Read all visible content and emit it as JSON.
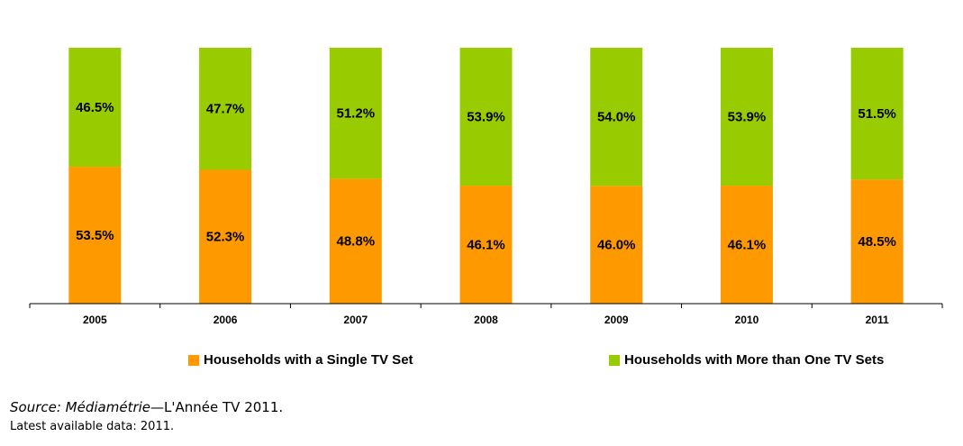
{
  "chart_data": {
    "type": "bar",
    "stacked": true,
    "categories": [
      "2005",
      "2006",
      "2007",
      "2008",
      "2009",
      "2010",
      "2011"
    ],
    "series": [
      {
        "name": "Households with a Single TV Set",
        "color": "#ff9900",
        "values": [
          53.5,
          52.3,
          48.8,
          46.1,
          46.0,
          46.1,
          48.5
        ],
        "labels": [
          "53.5%",
          "52.3%",
          "48.8%",
          "46.1%",
          "46.0%",
          "46.1%",
          "48.5%"
        ]
      },
      {
        "name": "Households with More than One TV Sets",
        "color": "#99cc00",
        "values": [
          46.5,
          47.7,
          51.2,
          53.9,
          54.0,
          53.9,
          51.5
        ],
        "labels": [
          "46.5%",
          "47.7%",
          "51.2%",
          "53.9%",
          "54.0%",
          "53.9%",
          "51.5%"
        ]
      }
    ],
    "ylim": [
      0,
      100
    ],
    "grid": false,
    "legend_position": "bottom"
  },
  "source": {
    "prefix": "Source: ",
    "org": "Médiamétrie",
    "rest": "—L'Année  TV 2011."
  },
  "note": "Latest available data: 2011."
}
